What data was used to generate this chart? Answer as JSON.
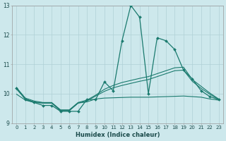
{
  "xlabel": "Humidex (Indice chaleur)",
  "xlim": [
    -0.5,
    23.5
  ],
  "ylim": [
    9,
    13
  ],
  "yticks": [
    9,
    10,
    11,
    12,
    13
  ],
  "xticks": [
    0,
    1,
    2,
    3,
    4,
    5,
    6,
    7,
    8,
    9,
    10,
    11,
    12,
    13,
    14,
    15,
    16,
    17,
    18,
    19,
    20,
    21,
    22,
    23
  ],
  "bg_color": "#cde8ec",
  "line_color": "#1a7a6e",
  "grid_color": "#afd0d6",
  "spike_line": [
    10.2,
    9.8,
    9.7,
    9.6,
    9.6,
    9.4,
    9.4,
    9.4,
    9.8,
    9.8,
    10.4,
    10.1,
    11.8,
    13.0,
    12.6,
    10.0,
    11.9,
    11.8,
    11.5,
    10.8,
    10.5,
    10.1,
    9.9,
    9.8
  ],
  "smooth_lines": [
    [
      10.2,
      9.85,
      9.75,
      9.7,
      9.7,
      9.45,
      9.45,
      9.7,
      9.78,
      9.95,
      10.15,
      10.28,
      10.38,
      10.45,
      10.52,
      10.58,
      10.68,
      10.78,
      10.88,
      10.9,
      10.48,
      10.25,
      10.02,
      9.82
    ],
    [
      10.15,
      9.82,
      9.72,
      9.68,
      9.68,
      9.43,
      9.43,
      9.68,
      9.75,
      9.92,
      10.08,
      10.2,
      10.28,
      10.35,
      10.42,
      10.48,
      10.58,
      10.68,
      10.78,
      10.8,
      10.42,
      10.18,
      9.98,
      9.8
    ],
    [
      9.98,
      9.78,
      9.7,
      9.68,
      9.68,
      9.42,
      9.42,
      9.68,
      9.72,
      9.82,
      9.85,
      9.86,
      9.87,
      9.88,
      9.88,
      9.88,
      9.89,
      9.9,
      9.91,
      9.92,
      9.9,
      9.88,
      9.82,
      9.78
    ]
  ]
}
